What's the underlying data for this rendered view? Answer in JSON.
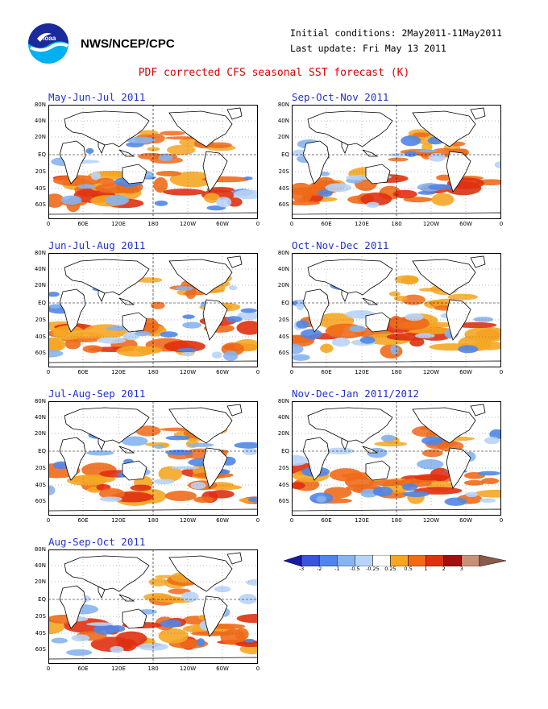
{
  "header": {
    "org": "NWS/NCEP/CPC",
    "initial_conditions": "Initial conditions: 2May2011-11May2011",
    "last_update": "Last update: Fri May 13 2011",
    "title": "PDF corrected CFS seasonal SST forecast (K)",
    "logo_icon": "noaa-logo-icon"
  },
  "axes": {
    "lat_labels": [
      "80N",
      "40N",
      "20N",
      "EQ",
      "20S",
      "40S",
      "60S"
    ],
    "lon_labels": [
      "0",
      "60E",
      "120E",
      "180",
      "120W",
      "60W",
      "0"
    ]
  },
  "maps": [
    {
      "title": "May-Jun-Jul 2011"
    },
    {
      "title": "Sep-Oct-Nov 2011"
    },
    {
      "title": "Jun-Jul-Aug 2011"
    },
    {
      "title": "Oct-Nov-Dec 2011"
    },
    {
      "title": "Jul-Aug-Sep 2011"
    },
    {
      "title": "Nov-Dec-Jan 2011/2012"
    },
    {
      "title": "Aug-Sep-Oct 2011"
    }
  ],
  "colorbar": {
    "labels": [
      "-3",
      "-2",
      "-1",
      "-0.5",
      "-0.25",
      "0.25",
      "0.5",
      "1",
      "2",
      "3"
    ],
    "colors": [
      "#1a1aa8",
      "#3a55d8",
      "#4f86e8",
      "#86b4f0",
      "#b8d4f8",
      "#ffffff",
      "#f5a623",
      "#f06a1a",
      "#e03010",
      "#a01010",
      "#c8907a",
      "#8a5a4a"
    ]
  }
}
